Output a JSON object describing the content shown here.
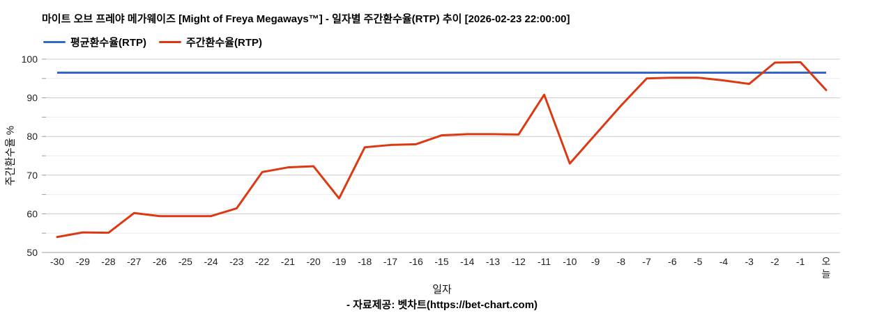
{
  "header": {
    "title": "마이트 오브 프레야 메가웨이즈 [Might of Freya Megaways™] - 일자별 주간환수율(RTP) 추이 [2026-02-23 22:00:00]"
  },
  "legend": {
    "items": [
      {
        "name": "average-rtp",
        "label": "평균환수율(RTP)",
        "color": "#3366CC"
      },
      {
        "name": "weekly-rtp",
        "label": "주간환수율(RTP)",
        "color": "#DC3912"
      }
    ]
  },
  "axes": {
    "x_title": "일자",
    "y_title": "주간환수율 %"
  },
  "footer": {
    "credit": "- 자료제공: 벳차트(https://bet-chart.com)"
  },
  "chart_data": {
    "type": "line",
    "title": "마이트 오브 프레야 메가웨이즈 [Might of Freya Megaways™] - 일자별 주간환수율(RTP) 추이 [2026-02-23 22:00:00]",
    "xlabel": "일자",
    "ylabel": "주간환수율 %",
    "ylim": [
      50,
      100
    ],
    "y_major_ticks": [
      50,
      60,
      70,
      80,
      90,
      100
    ],
    "y_minor_step": 5,
    "grid": true,
    "legend_position": "top-left",
    "categories": [
      "-30",
      "-29",
      "-28",
      "-27",
      "-26",
      "-25",
      "-24",
      "-23",
      "-22",
      "-21",
      "-20",
      "-19",
      "-18",
      "-17",
      "-16",
      "-15",
      "-14",
      "-13",
      "-12",
      "-11",
      "-10",
      "-9",
      "-8",
      "-7",
      "-6",
      "-5",
      "-4",
      "-3",
      "-2",
      "-1",
      "오늘"
    ],
    "series": [
      {
        "name": "평균환수율(RTP)",
        "color": "#3366CC",
        "constant_value": 96.5
      },
      {
        "name": "주간환수율(RTP)",
        "color": "#DC3912",
        "values": [
          54,
          55.2,
          55.1,
          60.2,
          59.4,
          59.4,
          59.4,
          61.4,
          70.8,
          72,
          72.3,
          64,
          77.2,
          77.8,
          78,
          80.3,
          80.6,
          80.6,
          80.5,
          90.8,
          73,
          80.5,
          88,
          95,
          95.2,
          95.2,
          94.5,
          93.6,
          99.1,
          99.2,
          92
        ]
      }
    ]
  }
}
